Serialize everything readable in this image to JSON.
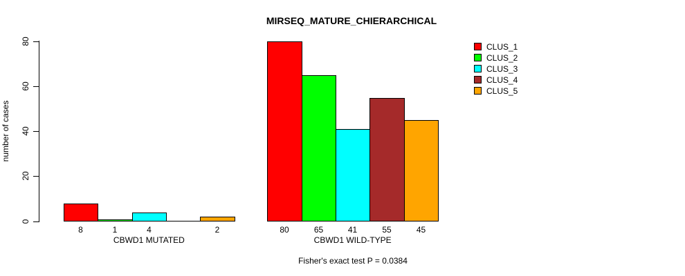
{
  "chart_data": {
    "type": "bar",
    "title": "MIRSEQ_MATURE_CHIERARCHICAL",
    "ylabel": "number of cases",
    "xlabel": "",
    "ylim": [
      0,
      80
    ],
    "yticks": [
      0,
      20,
      40,
      60,
      80
    ],
    "grid": false,
    "legend_position": "right",
    "categories": [
      "CBWD1 MUTATED",
      "CBWD1 WILD-TYPE"
    ],
    "series": [
      {
        "name": "CLUS_1",
        "color": "#FF0000",
        "values": [
          8,
          80
        ]
      },
      {
        "name": "CLUS_2",
        "color": "#00FF00",
        "values": [
          1,
          65
        ]
      },
      {
        "name": "CLUS_3",
        "color": "#00FFFF",
        "values": [
          4,
          41
        ]
      },
      {
        "name": "CLUS_4",
        "color": "#A52A2A",
        "values": [
          0,
          55
        ]
      },
      {
        "name": "CLUS_5",
        "color": "#FFA500",
        "values": [
          2,
          45
        ]
      }
    ],
    "bar_value_labels": [
      [
        "8",
        "1",
        "4",
        "",
        "2"
      ],
      [
        "80",
        "65",
        "41",
        "55",
        "45"
      ]
    ],
    "annotation": "Fisher's exact test P = 0.0384"
  }
}
